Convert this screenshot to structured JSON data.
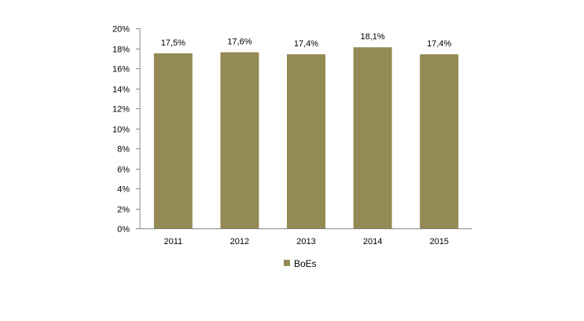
{
  "chart_data": {
    "type": "bar",
    "categories": [
      "2011",
      "2012",
      "2013",
      "2014",
      "2015"
    ],
    "series": [
      {
        "name": "BoEs",
        "values": [
          17.5,
          17.6,
          17.4,
          18.1,
          17.4
        ],
        "labels": [
          "17,5%",
          "17,6%",
          "17,4%",
          "18,1%",
          "17,4%"
        ],
        "color": "#948a54"
      }
    ],
    "ylim": [
      0,
      20
    ],
    "yticks": [
      0,
      2,
      4,
      6,
      8,
      10,
      12,
      14,
      16,
      18,
      20
    ],
    "ytick_labels": [
      "0%",
      "2%",
      "4%",
      "6%",
      "8%",
      "10%",
      "12%",
      "14%",
      "16%",
      "18%",
      "20%"
    ],
    "grid": false,
    "legend": "bottom"
  }
}
